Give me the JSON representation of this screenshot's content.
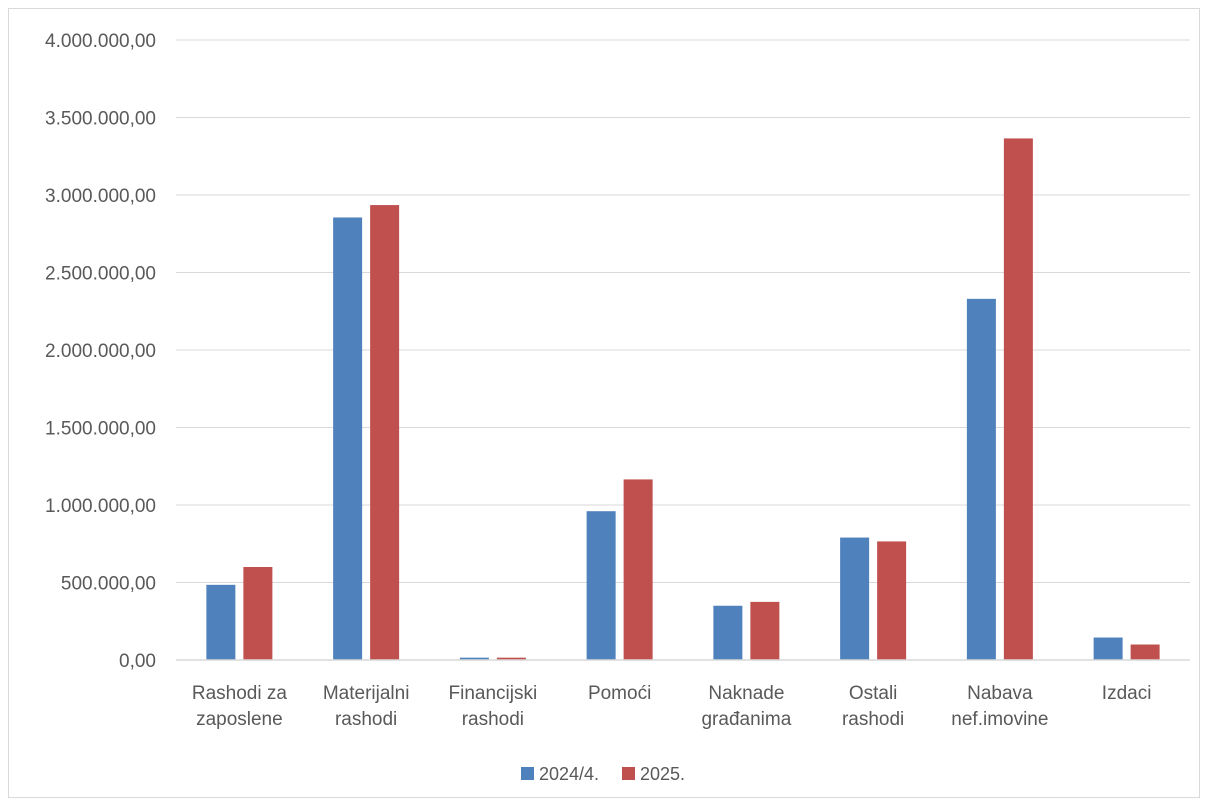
{
  "chart_data": {
    "type": "bar",
    "title": "",
    "xlabel": "",
    "ylabel": "",
    "ylim": [
      0,
      4000000
    ],
    "y_ticks": [
      0,
      500000,
      1000000,
      1500000,
      2000000,
      2500000,
      3000000,
      3500000,
      4000000
    ],
    "y_tick_labels": [
      "0,00",
      "500.000,00",
      "1.000.000,00",
      "1.500.000,00",
      "2.000.000,00",
      "2.500.000,00",
      "3.000.000,00",
      "3.500.000,00",
      "4.000.000,00"
    ],
    "grid": true,
    "legend_position": "bottom",
    "categories": [
      [
        "Rashodi za",
        "zaposlene"
      ],
      [
        "Materijalni",
        "rashodi"
      ],
      [
        "Financijski",
        "rashodi"
      ],
      [
        "Pomoći"
      ],
      [
        "Naknade",
        "građanima"
      ],
      [
        "Ostali",
        "rashodi"
      ],
      [
        "Nabava",
        "nef.imovine"
      ],
      [
        "Izdaci"
      ]
    ],
    "series": [
      {
        "name": "2024/4.",
        "color": "#4f81bd",
        "values": [
          485000,
          2855000,
          15000,
          960000,
          350000,
          790000,
          2330000,
          145000
        ]
      },
      {
        "name": "2025.",
        "color": "#c0504d",
        "values": [
          600000,
          2935000,
          15000,
          1165000,
          375000,
          765000,
          3365000,
          100000
        ]
      }
    ]
  }
}
